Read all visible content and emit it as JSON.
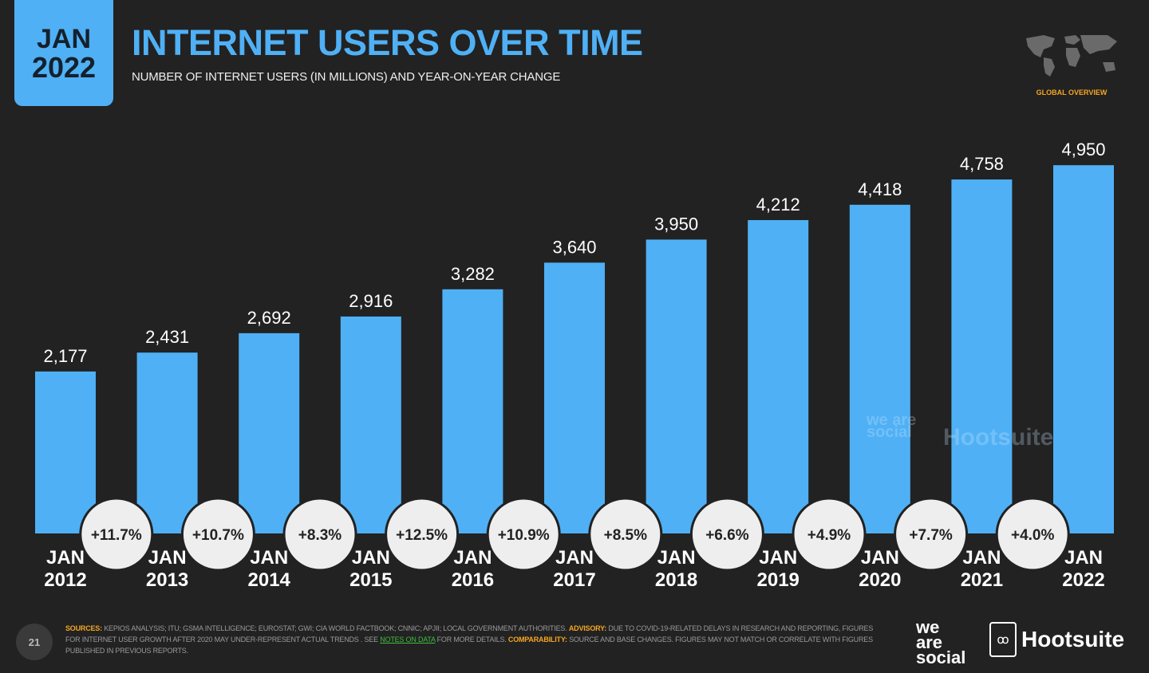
{
  "header": {
    "badge_month": "JAN",
    "badge_year": "2022",
    "title": "INTERNET USERS OVER TIME",
    "subtitle": "NUMBER OF INTERNET USERS (IN MILLIONS) AND YEAR-ON-YEAR CHANGE",
    "overview_label": "GLOBAL OVERVIEW"
  },
  "colors": {
    "accent": "#4fb0f5",
    "background": "#222222",
    "highlight": "#f5a623"
  },
  "chart_data": {
    "type": "bar",
    "title": "INTERNET USERS OVER TIME",
    "subtitle": "NUMBER OF INTERNET USERS (IN MILLIONS) AND YEAR-ON-YEAR CHANGE",
    "categories": [
      [
        "JAN",
        "2012"
      ],
      [
        "JAN",
        "2013"
      ],
      [
        "JAN",
        "2014"
      ],
      [
        "JAN",
        "2015"
      ],
      [
        "JAN",
        "2016"
      ],
      [
        "JAN",
        "2017"
      ],
      [
        "JAN",
        "2018"
      ],
      [
        "JAN",
        "2019"
      ],
      [
        "JAN",
        "2020"
      ],
      [
        "JAN",
        "2021"
      ],
      [
        "JAN",
        "2022"
      ]
    ],
    "values": [
      2177,
      2431,
      2692,
      2916,
      3282,
      3640,
      3950,
      4212,
      4418,
      4758,
      4950
    ],
    "value_labels": [
      "2,177",
      "2,431",
      "2,692",
      "2,916",
      "3,282",
      "3,640",
      "3,950",
      "4,212",
      "4,418",
      "4,758",
      "4,950"
    ],
    "yoy_change": [
      "+11.7%",
      "+10.7%",
      "+8.3%",
      "+12.5%",
      "+10.9%",
      "+8.5%",
      "+6.6%",
      "+4.9%",
      "+7.7%",
      "+4.0%"
    ],
    "xlabel": "",
    "ylabel": "",
    "ylim": [
      0,
      5000
    ],
    "grid": false,
    "legend": "none"
  },
  "watermark": {
    "left": "we are social",
    "right": "Hootsuite"
  },
  "footer": {
    "page_number": "21",
    "sources_label": "SOURCES:",
    "sources_text": "KEPIOS ANALYSIS; ITU; GSMA INTELLIGENCE; EUROSTAT; GWI; CIA WORLD FACTBOOK; CNNIC; APJII; LOCAL GOVERNMENT AUTHORITIES.",
    "advisory_label": "ADVISORY:",
    "advisory_text": "DUE TO COVID-19-RELATED DELAYS IN RESEARCH AND REPORTING, FIGURES FOR INTERNET USER GROWTH AFTER 2020 MAY UNDER-REPRESENT ACTUAL TRENDS . SEE",
    "notes_link": "NOTES ON DATA",
    "notes_after": "FOR MORE DETAILS.",
    "comparability_label": "COMPARABILITY:",
    "comparability_text": "SOURCE AND BASE CHANGES. FIGURES MAY NOT MATCH OR CORRELATE WITH FIGURES PUBLISHED IN PREVIOUS REPORTS.",
    "brand_left": [
      "we",
      "are",
      "social"
    ],
    "brand_right": "Hootsuite",
    "owl_glyph": "ꝏ"
  }
}
